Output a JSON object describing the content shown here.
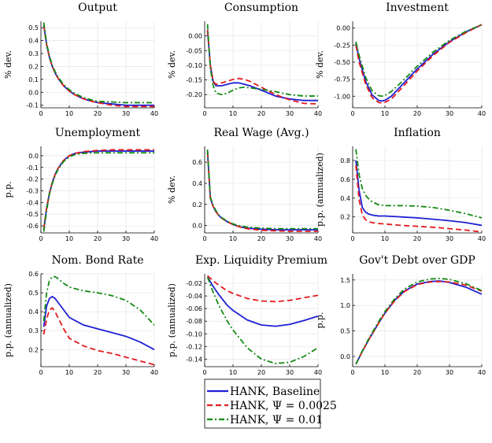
{
  "legend": {
    "entries": [
      {
        "label": "HANK, Baseline",
        "color": "#1f1fd6",
        "dash": "solid"
      },
      {
        "label": "HANK, Ψ = 0.0025",
        "color": "#e31a1c",
        "dash": "dashed"
      },
      {
        "label": "HANK, Ψ = 0.01",
        "color": "#138a13",
        "dash": "dashdot"
      }
    ]
  },
  "chart_data": [
    {
      "type": "line",
      "title": "Output",
      "ylabel": "% dev.",
      "xlim": [
        0,
        40
      ],
      "ylim": [
        -0.12,
        0.55
      ],
      "xticks": [
        0,
        10,
        20,
        30,
        40
      ],
      "yticks": [
        -0.1,
        0.0,
        0.1,
        0.2,
        0.3,
        0.4,
        0.5
      ],
      "ytick_labels": [
        "-0.1",
        "0.0",
        "0.1",
        "0.2",
        "0.3",
        "0.4",
        "0.5"
      ],
      "x": [
        1,
        2,
        3,
        4,
        5,
        6,
        8,
        10,
        12,
        15,
        18,
        20,
        25,
        30,
        35,
        40
      ],
      "series": [
        {
          "values": [
            0.52,
            0.37,
            0.27,
            0.2,
            0.15,
            0.11,
            0.05,
            0.01,
            -0.02,
            -0.05,
            -0.07,
            -0.08,
            -0.09,
            -0.1,
            -0.1,
            -0.1
          ]
        },
        {
          "values": [
            0.52,
            0.37,
            0.27,
            0.2,
            0.15,
            0.11,
            0.05,
            0.01,
            -0.02,
            -0.05,
            -0.07,
            -0.08,
            -0.1,
            -0.11,
            -0.11,
            -0.11
          ]
        },
        {
          "values": [
            0.54,
            0.38,
            0.28,
            0.21,
            0.16,
            0.12,
            0.06,
            0.02,
            -0.01,
            -0.04,
            -0.06,
            -0.07,
            -0.075,
            -0.08,
            -0.08,
            -0.08
          ]
        }
      ]
    },
    {
      "type": "line",
      "title": "Consumption",
      "ylabel": "% dev.",
      "xlim": [
        0,
        40
      ],
      "ylim": [
        -0.245,
        0.05
      ],
      "xticks": [
        0,
        10,
        20,
        30,
        40
      ],
      "yticks": [
        -0.2,
        -0.15,
        -0.1,
        -0.05,
        0.0
      ],
      "ytick_labels": [
        "-0.20",
        "-0.15",
        "-0.10",
        "-0.05",
        "0.00"
      ],
      "x": [
        1,
        2,
        3,
        4,
        6,
        8,
        10,
        12,
        14,
        16,
        20,
        25,
        30,
        35,
        40
      ],
      "series": [
        {
          "values": [
            0.02,
            -0.1,
            -0.155,
            -0.17,
            -0.17,
            -0.165,
            -0.16,
            -0.16,
            -0.165,
            -0.17,
            -0.185,
            -0.205,
            -0.215,
            -0.22,
            -0.22
          ]
        },
        {
          "values": [
            0.02,
            -0.1,
            -0.155,
            -0.165,
            -0.16,
            -0.155,
            -0.148,
            -0.145,
            -0.148,
            -0.155,
            -0.175,
            -0.2,
            -0.218,
            -0.23,
            -0.232
          ]
        },
        {
          "values": [
            0.04,
            -0.11,
            -0.17,
            -0.195,
            -0.2,
            -0.195,
            -0.185,
            -0.177,
            -0.175,
            -0.177,
            -0.182,
            -0.19,
            -0.2,
            -0.205,
            -0.205
          ]
        }
      ]
    },
    {
      "type": "line",
      "title": "Investment",
      "ylabel": "% dev.",
      "xlim": [
        0,
        40
      ],
      "ylim": [
        -1.17,
        0.1
      ],
      "xticks": [
        0,
        10,
        20,
        30,
        40
      ],
      "yticks": [
        -1.0,
        -0.75,
        -0.5,
        -0.25,
        0.0
      ],
      "ytick_labels": [
        "-1.00",
        "-0.75",
        "-0.50",
        "-0.25",
        "0.00"
      ],
      "x": [
        1,
        2,
        4,
        6,
        8,
        9,
        10,
        12,
        15,
        20,
        25,
        30,
        35,
        40
      ],
      "series": [
        {
          "values": [
            -0.22,
            -0.45,
            -0.78,
            -0.98,
            -1.06,
            -1.07,
            -1.06,
            -1.0,
            -0.85,
            -0.6,
            -0.38,
            -0.2,
            -0.06,
            0.05
          ]
        },
        {
          "values": [
            -0.25,
            -0.5,
            -0.82,
            -1.02,
            -1.09,
            -1.1,
            -1.09,
            -1.04,
            -0.89,
            -0.63,
            -0.4,
            -0.21,
            -0.07,
            0.05
          ]
        },
        {
          "values": [
            -0.2,
            -0.4,
            -0.72,
            -0.92,
            -0.99,
            -1.0,
            -0.99,
            -0.93,
            -0.8,
            -0.56,
            -0.35,
            -0.18,
            -0.05,
            0.05
          ]
        }
      ]
    },
    {
      "type": "line",
      "title": "Unemployment",
      "ylabel": "p.p.",
      "xlim": [
        0,
        40
      ],
      "ylim": [
        -0.66,
        0.08
      ],
      "xticks": [
        0,
        10,
        20,
        30,
        40
      ],
      "yticks": [
        -0.6,
        -0.5,
        -0.4,
        -0.3,
        -0.2,
        -0.1,
        0.0
      ],
      "ytick_labels": [
        "-0.6",
        "-0.5",
        "-0.4",
        "-0.3",
        "-0.2",
        "-0.1",
        "0.0"
      ],
      "x": [
        1,
        2,
        3,
        4,
        5,
        6,
        8,
        10,
        12,
        15,
        20,
        25,
        30,
        35,
        40
      ],
      "series": [
        {
          "values": [
            -0.63,
            -0.45,
            -0.32,
            -0.23,
            -0.16,
            -0.11,
            -0.04,
            0.0,
            0.02,
            0.03,
            0.04,
            0.04,
            0.04,
            0.04,
            0.04
          ]
        },
        {
          "values": [
            -0.63,
            -0.45,
            -0.32,
            -0.23,
            -0.16,
            -0.11,
            -0.04,
            0.0,
            0.02,
            0.035,
            0.045,
            0.05,
            0.05,
            0.05,
            0.05
          ]
        },
        {
          "values": [
            -0.65,
            -0.47,
            -0.33,
            -0.24,
            -0.17,
            -0.12,
            -0.05,
            -0.01,
            0.01,
            0.02,
            0.025,
            0.025,
            0.025,
            0.025,
            0.025
          ]
        }
      ]
    },
    {
      "type": "line",
      "title": "Real Wage (Avg.)",
      "ylabel": "% dev.",
      "xlim": [
        0,
        40
      ],
      "ylim": [
        -0.07,
        0.75
      ],
      "xticks": [
        0,
        10,
        20,
        30,
        40
      ],
      "yticks": [
        0.0,
        0.2,
        0.4,
        0.6
      ],
      "ytick_labels": [
        "0.0",
        "0.2",
        "0.4",
        "0.6"
      ],
      "x": [
        1,
        2,
        3,
        4,
        5,
        6,
        8,
        10,
        12,
        15,
        20,
        25,
        30,
        35,
        40
      ],
      "series": [
        {
          "values": [
            0.7,
            0.26,
            0.18,
            0.13,
            0.095,
            0.07,
            0.035,
            0.01,
            -0.01,
            -0.025,
            -0.035,
            -0.04,
            -0.04,
            -0.04,
            -0.04
          ]
        },
        {
          "values": [
            0.7,
            0.26,
            0.18,
            0.13,
            0.095,
            0.07,
            0.035,
            0.01,
            -0.01,
            -0.03,
            -0.045,
            -0.05,
            -0.055,
            -0.055,
            -0.055
          ]
        },
        {
          "values": [
            0.72,
            0.27,
            0.19,
            0.14,
            0.1,
            0.075,
            0.04,
            0.015,
            0.0,
            -0.015,
            -0.025,
            -0.03,
            -0.03,
            -0.03,
            -0.03
          ]
        }
      ]
    },
    {
      "type": "line",
      "title": "Inflation",
      "ylabel": "p.p. (annualized)",
      "xlim": [
        0,
        40
      ],
      "ylim": [
        0.03,
        0.95
      ],
      "xticks": [
        0,
        10,
        20,
        30,
        40
      ],
      "yticks": [
        0.2,
        0.4,
        0.6,
        0.8
      ],
      "ytick_labels": [
        "0.2",
        "0.4",
        "0.6",
        "0.8"
      ],
      "x": [
        1,
        2,
        3,
        4,
        5,
        6,
        8,
        10,
        15,
        20,
        25,
        30,
        35,
        40
      ],
      "series": [
        {
          "values": [
            0.8,
            0.48,
            0.3,
            0.25,
            0.23,
            0.22,
            0.21,
            0.21,
            0.2,
            0.19,
            0.175,
            0.16,
            0.14,
            0.11
          ]
        },
        {
          "values": [
            0.75,
            0.38,
            0.22,
            0.17,
            0.15,
            0.14,
            0.13,
            0.125,
            0.11,
            0.1,
            0.09,
            0.075,
            0.06,
            0.04
          ]
        },
        {
          "values": [
            0.92,
            0.65,
            0.5,
            0.43,
            0.39,
            0.36,
            0.33,
            0.32,
            0.32,
            0.315,
            0.3,
            0.27,
            0.235,
            0.19
          ]
        }
      ]
    },
    {
      "type": "line",
      "title": "Nom. Bond Rate",
      "ylabel": "p.p. (annualized)",
      "xlim": [
        0,
        40
      ],
      "ylim": [
        0.11,
        0.6
      ],
      "xticks": [
        0,
        10,
        20,
        30,
        40
      ],
      "yticks": [
        0.2,
        0.3,
        0.4,
        0.5,
        0.6
      ],
      "ytick_labels": [
        "0.2",
        "0.3",
        "0.4",
        "0.5",
        "0.6"
      ],
      "x": [
        1,
        2,
        3,
        4,
        5,
        6,
        8,
        10,
        15,
        20,
        25,
        30,
        35,
        40
      ],
      "series": [
        {
          "values": [
            0.32,
            0.43,
            0.47,
            0.48,
            0.47,
            0.45,
            0.41,
            0.37,
            0.33,
            0.31,
            0.29,
            0.27,
            0.24,
            0.2
          ]
        },
        {
          "values": [
            0.28,
            0.36,
            0.41,
            0.42,
            0.4,
            0.37,
            0.31,
            0.26,
            0.22,
            0.195,
            0.18,
            0.16,
            0.14,
            0.12
          ]
        },
        {
          "values": [
            0.35,
            0.5,
            0.565,
            0.585,
            0.585,
            0.575,
            0.55,
            0.53,
            0.51,
            0.5,
            0.485,
            0.46,
            0.41,
            0.33
          ]
        }
      ]
    },
    {
      "type": "line",
      "title": "Exp. Liquidity Premium",
      "ylabel": "p.p. (annualized)",
      "xlim": [
        0,
        40
      ],
      "ylim": [
        -0.152,
        -0.005
      ],
      "xticks": [
        0,
        10,
        20,
        30,
        40
      ],
      "yticks": [
        -0.14,
        -0.12,
        -0.1,
        -0.08,
        -0.06,
        -0.04,
        -0.02
      ],
      "ytick_labels": [
        "-0.14",
        "-0.12",
        "-0.10",
        "-0.08",
        "-0.06",
        "-0.04",
        "-0.02"
      ],
      "x": [
        1,
        3,
        5,
        8,
        10,
        15,
        20,
        25,
        30,
        35,
        40
      ],
      "series": [
        {
          "values": [
            -0.01,
            -0.025,
            -0.038,
            -0.055,
            -0.063,
            -0.078,
            -0.086,
            -0.088,
            -0.085,
            -0.079,
            -0.072
          ]
        },
        {
          "values": [
            -0.008,
            -0.016,
            -0.023,
            -0.032,
            -0.036,
            -0.044,
            -0.048,
            -0.049,
            -0.047,
            -0.043,
            -0.039
          ]
        },
        {
          "values": [
            -0.01,
            -0.034,
            -0.055,
            -0.08,
            -0.094,
            -0.122,
            -0.14,
            -0.147,
            -0.145,
            -0.136,
            -0.122
          ]
        }
      ]
    },
    {
      "type": "line",
      "title": "Gov't Debt over GDP",
      "ylabel": "p.p.",
      "xlim": [
        0,
        40
      ],
      "ylim": [
        -0.2,
        1.62
      ],
      "xticks": [
        0,
        10,
        20,
        30,
        40
      ],
      "yticks": [
        0.0,
        0.5,
        1.0,
        1.5
      ],
      "ytick_labels": [
        "0.0",
        "0.5",
        "1.0",
        "1.5"
      ],
      "x": [
        1,
        3,
        5,
        8,
        10,
        13,
        16,
        20,
        24,
        27,
        30,
        35,
        40
      ],
      "series": [
        {
          "values": [
            -0.15,
            0.1,
            0.33,
            0.65,
            0.85,
            1.1,
            1.28,
            1.42,
            1.47,
            1.48,
            1.45,
            1.36,
            1.22
          ]
        },
        {
          "values": [
            -0.15,
            0.1,
            0.33,
            0.65,
            0.85,
            1.09,
            1.27,
            1.41,
            1.46,
            1.47,
            1.46,
            1.4,
            1.28
          ]
        },
        {
          "values": [
            -0.15,
            0.11,
            0.35,
            0.68,
            0.88,
            1.13,
            1.32,
            1.46,
            1.52,
            1.53,
            1.51,
            1.43,
            1.29
          ]
        }
      ]
    }
  ]
}
